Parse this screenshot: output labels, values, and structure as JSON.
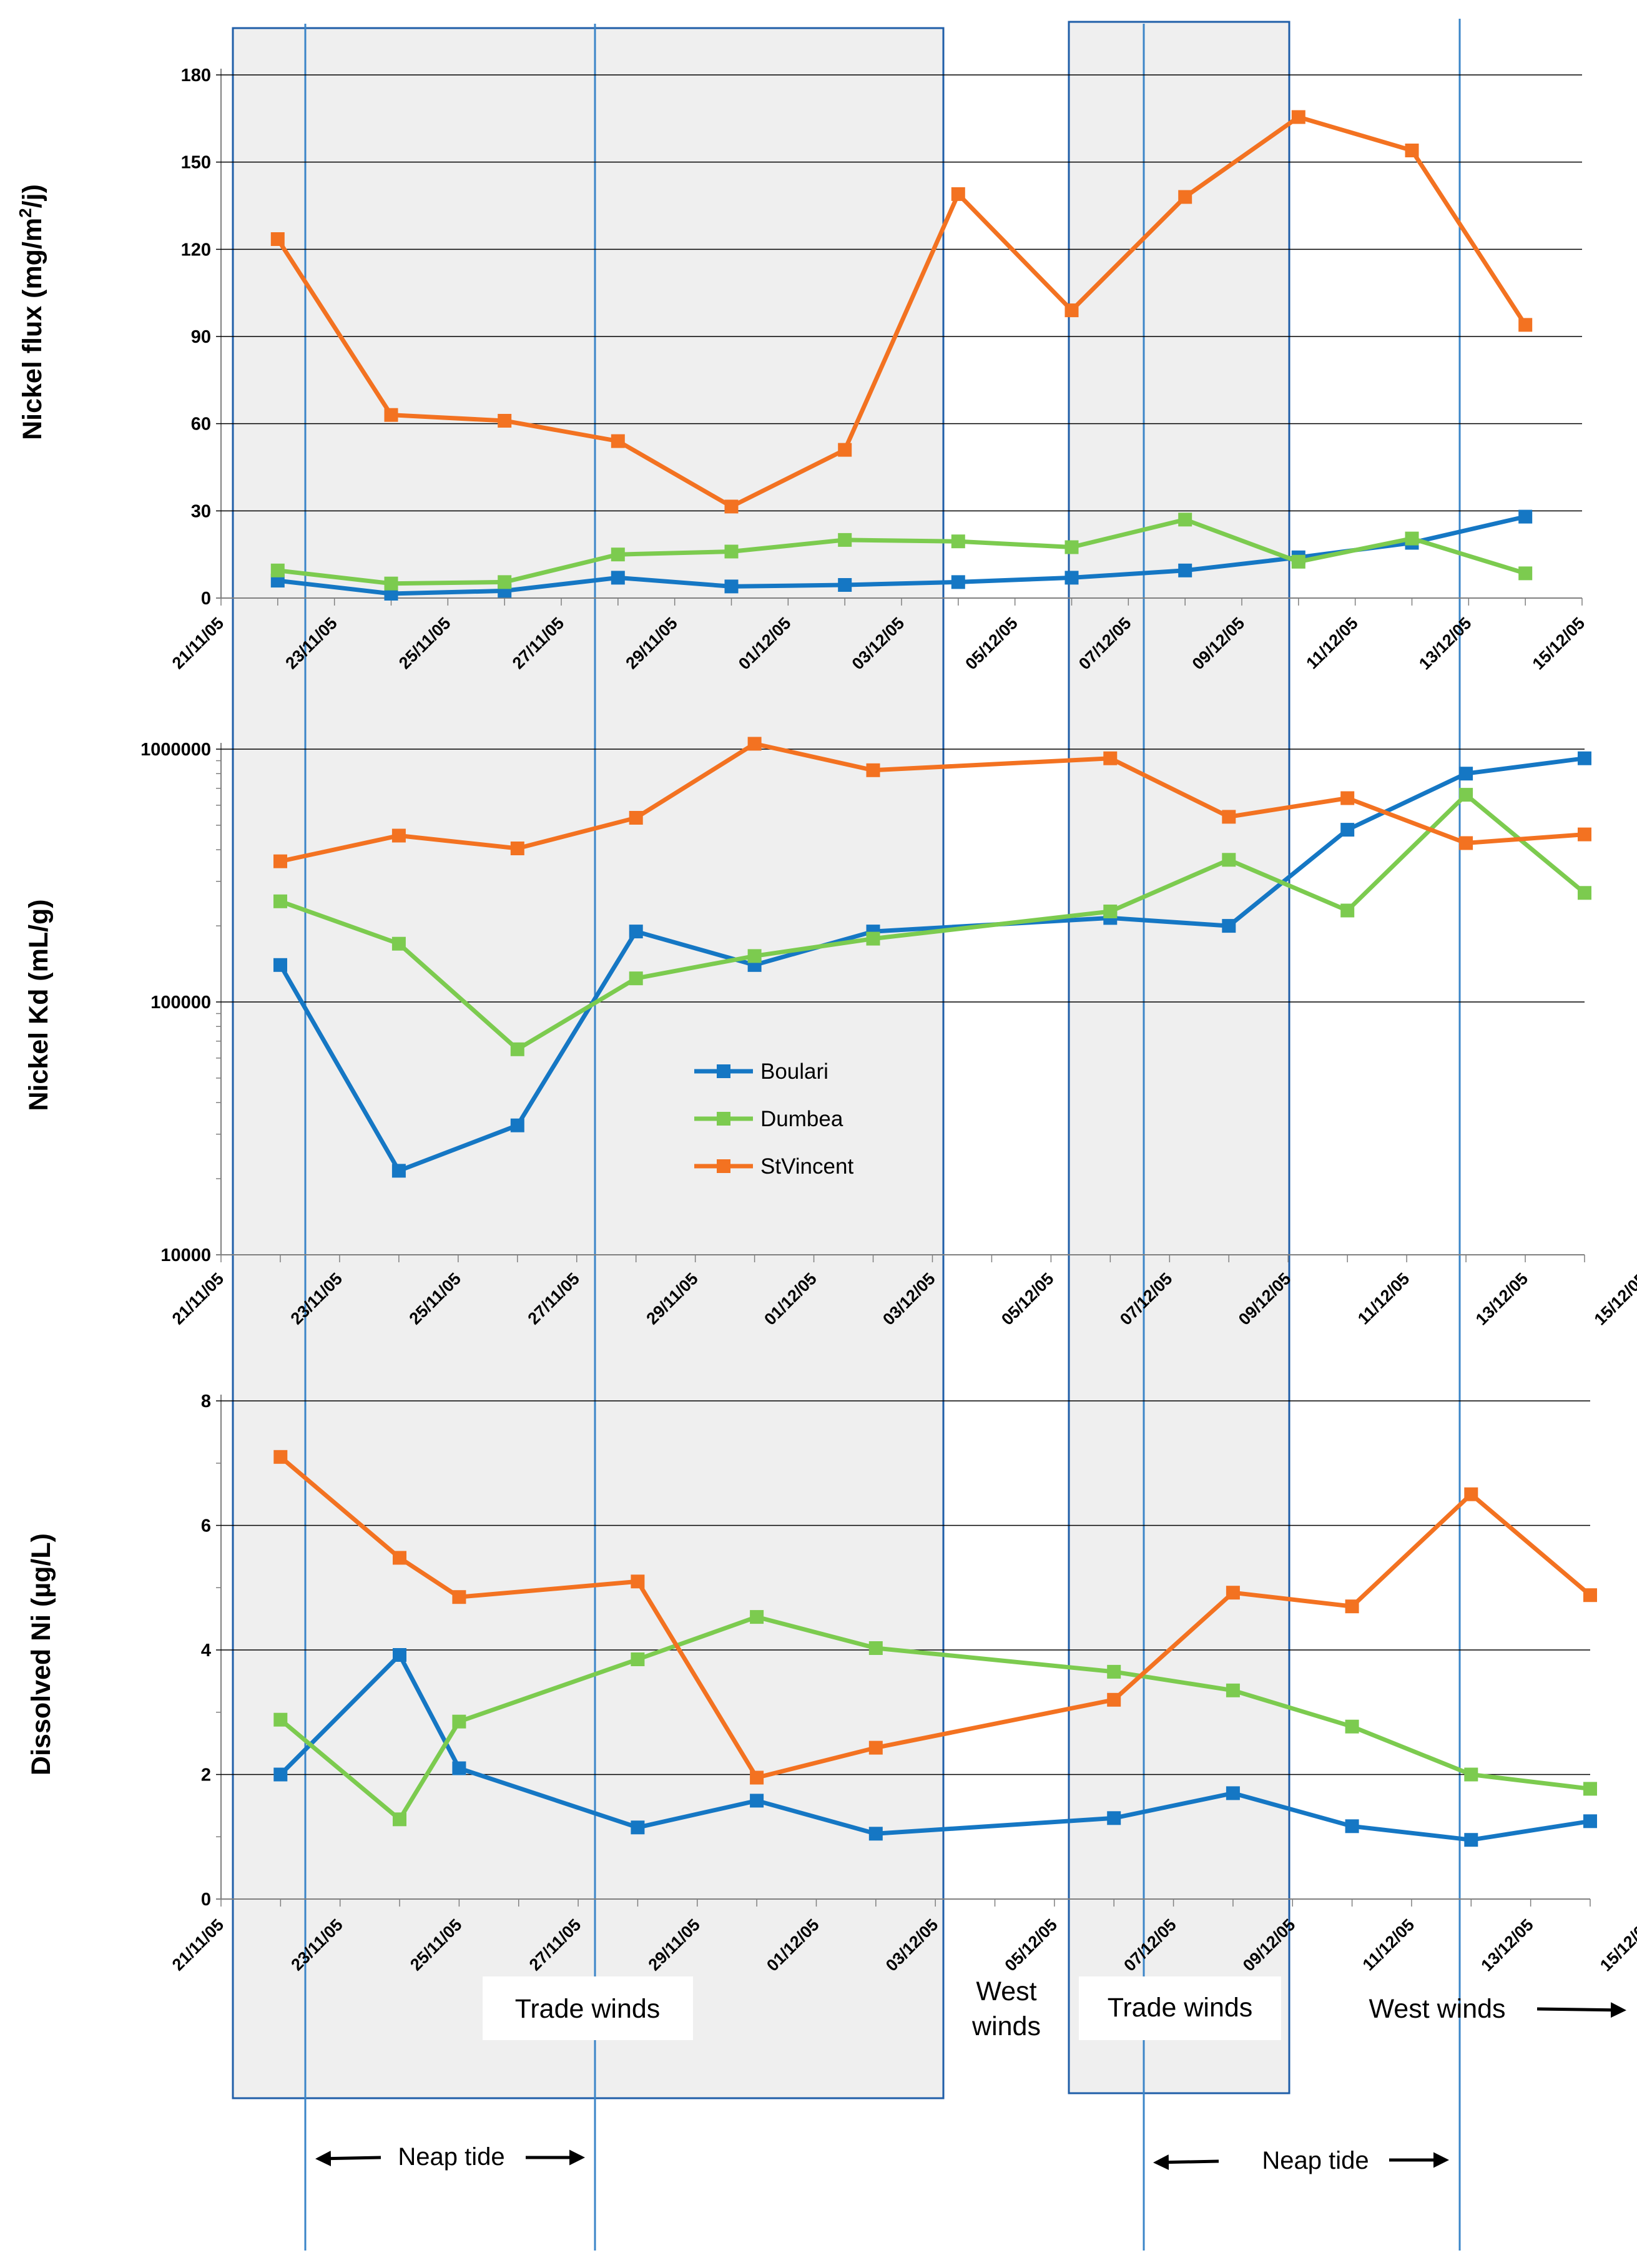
{
  "colors": {
    "Boulari": "#1577c4",
    "Dumbea": "#7ccb4f",
    "StVincent": "#f37221",
    "period_border": "#1f5ea8",
    "period_fill": "#efefef",
    "tide_line": "#3b85c8"
  },
  "legend": [
    "Boulari",
    "Dumbea",
    "StVincent"
  ],
  "x_tick_labels": [
    "21/11/05",
    "23/11/05",
    "25/11/05",
    "27/11/05",
    "29/11/05",
    "01/12/05",
    "03/12/05",
    "05/12/05",
    "07/12/05",
    "09/12/05",
    "11/12/05",
    "13/12/05",
    "15/12/05"
  ],
  "chart_data": [
    {
      "type": "line",
      "ylabel": "Nickel flux (mg/m²/j)",
      "ylabel_main": "Nickel flux (mg/m",
      "ylabel_sup": "2",
      "ylabel_end": "/j)",
      "ylim": [
        0,
        180
      ],
      "yticks": [
        "0",
        "30",
        "60",
        "90",
        "120",
        "150",
        "180"
      ],
      "xlim_days": [
        0,
        24
      ],
      "series": [
        {
          "name": "Boulari",
          "x_days": [
            1,
            3,
            5,
            7,
            9,
            11,
            13,
            15,
            17,
            19,
            21,
            23
          ],
          "values": [
            6,
            1.5,
            2.5,
            7,
            4,
            4.5,
            5.5,
            7,
            9.5,
            14,
            19,
            28
          ]
        },
        {
          "name": "Dumbea",
          "x_days": [
            1,
            3,
            5,
            7,
            9,
            11,
            13,
            15,
            17,
            19,
            21,
            23
          ],
          "values": [
            9.5,
            5,
            5.5,
            15,
            16,
            20,
            19.5,
            17.5,
            27,
            12.5,
            20.5,
            8.5
          ]
        },
        {
          "name": "StVincent",
          "x_days": [
            1,
            3,
            5,
            7,
            9,
            11,
            13,
            15,
            17,
            19,
            21,
            23
          ],
          "values": [
            123.5,
            63,
            61,
            54,
            31.5,
            51,
            139,
            99,
            138,
            165.5,
            154,
            94
          ]
        }
      ]
    },
    {
      "type": "line",
      "yscale": "log",
      "ylabel": "Nickel Kd (mL/g)",
      "ylim": [
        10000,
        1000000
      ],
      "yticks": [
        "10000",
        "100000",
        "1000000"
      ],
      "xlim_days": [
        0,
        23
      ],
      "series": [
        {
          "name": "Boulari",
          "x_days": [
            1,
            3,
            5,
            7,
            9,
            11,
            15,
            17,
            19,
            21,
            23
          ],
          "values": [
            140000,
            21500,
            32500,
            190000,
            140000,
            190000,
            215000,
            200000,
            480000,
            800000,
            920000
          ]
        },
        {
          "name": "Dumbea",
          "x_days": [
            1,
            3,
            5,
            7,
            9,
            11,
            15,
            17,
            19,
            21,
            23
          ],
          "values": [
            250000,
            170000,
            65000,
            124000,
            152000,
            178000,
            228000,
            365000,
            230000,
            660000,
            270000
          ]
        },
        {
          "name": "StVincent",
          "x_days": [
            1,
            3,
            5,
            7,
            9,
            11,
            15,
            17,
            19,
            21,
            23
          ],
          "values": [
            360000,
            455000,
            405000,
            535000,
            1050000,
            825000,
            920000,
            540000,
            640000,
            425000,
            460000
          ]
        }
      ]
    },
    {
      "type": "line",
      "ylabel": "Dissolved Ni (µg/L)",
      "ylim": [
        0,
        8
      ],
      "yticks": [
        "0",
        "2",
        "4",
        "6",
        "8"
      ],
      "xlim_days": [
        0,
        23
      ],
      "series": [
        {
          "name": "Boulari",
          "x_days": [
            1,
            3,
            4,
            7,
            9,
            11,
            15,
            17,
            19,
            21,
            23
          ],
          "values": [
            2.0,
            3.92,
            2.1,
            1.15,
            1.58,
            1.05,
            1.3,
            1.7,
            1.17,
            0.95,
            1.25
          ]
        },
        {
          "name": "Dumbea",
          "x_days": [
            1,
            3,
            4,
            7,
            9,
            11,
            15,
            17,
            19,
            21,
            23
          ],
          "values": [
            2.88,
            1.28,
            2.85,
            3.85,
            4.53,
            4.03,
            3.65,
            3.35,
            2.77,
            2.0,
            1.77
          ]
        },
        {
          "name": "StVincent",
          "x_days": [
            1,
            3,
            4,
            7,
            9,
            11,
            15,
            17,
            19,
            21,
            23
          ],
          "values": [
            7.1,
            5.48,
            4.85,
            5.1,
            1.95,
            2.43,
            3.2,
            4.92,
            4.7,
            6.5,
            4.88
          ]
        }
      ]
    }
  ],
  "annotations": {
    "trade_winds_1": "Trade winds",
    "west_winds_1_line1": "West",
    "west_winds_1_line2": "winds",
    "trade_winds_2": "Trade winds",
    "west_winds_2": "West winds",
    "neap_tide_1": "Neap tide",
    "neap_tide_2": "Neap tide"
  }
}
